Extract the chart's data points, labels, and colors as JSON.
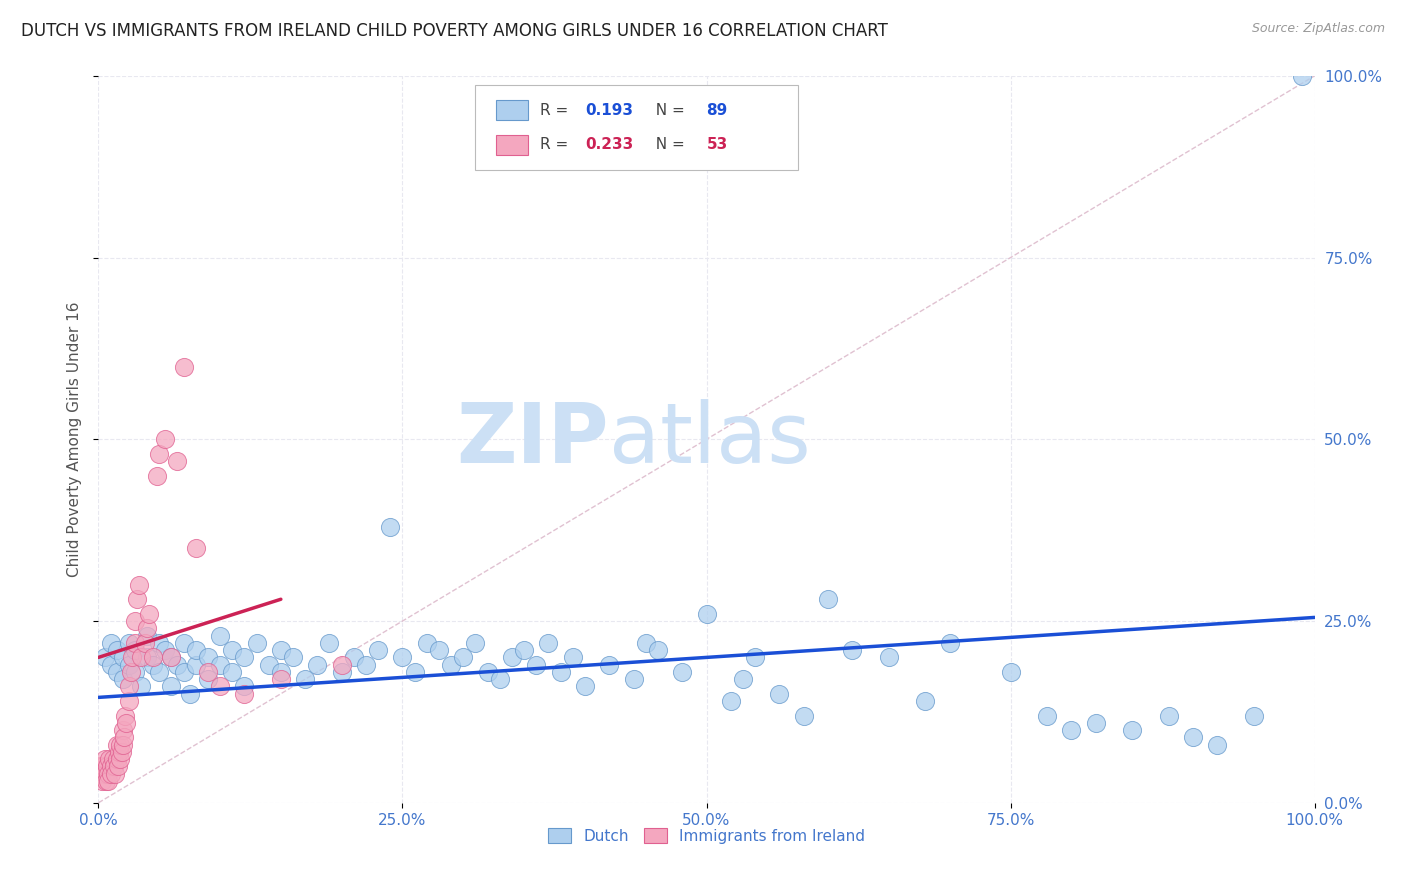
{
  "title": "DUTCH VS IMMIGRANTS FROM IRELAND CHILD POVERTY AMONG GIRLS UNDER 16 CORRELATION CHART",
  "source": "Source: ZipAtlas.com",
  "ylabel": "Child Poverty Among Girls Under 16",
  "xlim": [
    0,
    1
  ],
  "ylim": [
    0,
    1
  ],
  "xticks": [
    0.0,
    0.25,
    0.5,
    0.75,
    1.0
  ],
  "yticks": [
    0.0,
    0.25,
    0.5,
    0.75,
    1.0
  ],
  "xticklabels": [
    "0.0%",
    "25.0%",
    "50.0%",
    "75.0%",
    "100.0%"
  ],
  "yticklabels": [
    "0.0%",
    "25.0%",
    "50.0%",
    "75.0%",
    "100.0%"
  ],
  "dutch_color": "#aecfee",
  "irish_color": "#f4a7bf",
  "dutch_edge_color": "#6699cc",
  "irish_edge_color": "#e06090",
  "blue_line_color": "#1a4fd6",
  "pink_line_color": "#cc2255",
  "diag_line_color": "#ddbbcc",
  "R_dutch": 0.193,
  "N_dutch": 89,
  "R_irish": 0.233,
  "N_irish": 53,
  "watermark_zip": "ZIP",
  "watermark_atlas": "atlas",
  "watermark_color_zip": "#cce0f5",
  "watermark_color_atlas": "#cce0f5",
  "background_color": "#ffffff",
  "grid_color": "#e8e8f0",
  "grid_linestyle": "--",
  "title_fontsize": 12,
  "tick_color": "#4477cc",
  "legend_label_dutch": "Dutch",
  "legend_label_irish": "Immigrants from Ireland",
  "dutch_x": [
    0.005,
    0.01,
    0.01,
    0.015,
    0.015,
    0.02,
    0.02,
    0.025,
    0.025,
    0.03,
    0.03,
    0.035,
    0.04,
    0.04,
    0.045,
    0.05,
    0.05,
    0.055,
    0.06,
    0.06,
    0.065,
    0.07,
    0.07,
    0.075,
    0.08,
    0.08,
    0.09,
    0.09,
    0.1,
    0.1,
    0.11,
    0.11,
    0.12,
    0.12,
    0.13,
    0.14,
    0.15,
    0.15,
    0.16,
    0.17,
    0.18,
    0.19,
    0.2,
    0.21,
    0.22,
    0.23,
    0.24,
    0.25,
    0.26,
    0.27,
    0.28,
    0.29,
    0.3,
    0.31,
    0.32,
    0.33,
    0.34,
    0.35,
    0.36,
    0.37,
    0.38,
    0.39,
    0.4,
    0.42,
    0.44,
    0.45,
    0.46,
    0.48,
    0.5,
    0.52,
    0.53,
    0.54,
    0.56,
    0.58,
    0.6,
    0.62,
    0.65,
    0.68,
    0.7,
    0.75,
    0.78,
    0.8,
    0.82,
    0.85,
    0.88,
    0.9,
    0.92,
    0.95,
    0.99
  ],
  "dutch_y": [
    0.2,
    0.22,
    0.19,
    0.18,
    0.21,
    0.17,
    0.2,
    0.19,
    0.22,
    0.18,
    0.21,
    0.16,
    0.2,
    0.23,
    0.19,
    0.22,
    0.18,
    0.21,
    0.16,
    0.2,
    0.19,
    0.18,
    0.22,
    0.15,
    0.19,
    0.21,
    0.17,
    0.2,
    0.19,
    0.23,
    0.18,
    0.21,
    0.16,
    0.2,
    0.22,
    0.19,
    0.21,
    0.18,
    0.2,
    0.17,
    0.19,
    0.22,
    0.18,
    0.2,
    0.19,
    0.21,
    0.38,
    0.2,
    0.18,
    0.22,
    0.21,
    0.19,
    0.2,
    0.22,
    0.18,
    0.17,
    0.2,
    0.21,
    0.19,
    0.22,
    0.18,
    0.2,
    0.16,
    0.19,
    0.17,
    0.22,
    0.21,
    0.18,
    0.26,
    0.14,
    0.17,
    0.2,
    0.15,
    0.12,
    0.28,
    0.21,
    0.2,
    0.14,
    0.22,
    0.18,
    0.12,
    0.1,
    0.11,
    0.1,
    0.12,
    0.09,
    0.08,
    0.12,
    1.0
  ],
  "irish_x": [
    0.001,
    0.002,
    0.003,
    0.004,
    0.005,
    0.005,
    0.006,
    0.007,
    0.008,
    0.008,
    0.009,
    0.01,
    0.01,
    0.012,
    0.013,
    0.014,
    0.015,
    0.015,
    0.016,
    0.017,
    0.018,
    0.018,
    0.019,
    0.02,
    0.02,
    0.021,
    0.022,
    0.023,
    0.025,
    0.025,
    0.027,
    0.028,
    0.03,
    0.03,
    0.032,
    0.033,
    0.035,
    0.038,
    0.04,
    0.042,
    0.045,
    0.048,
    0.05,
    0.055,
    0.06,
    0.065,
    0.07,
    0.08,
    0.09,
    0.1,
    0.12,
    0.15,
    0.2
  ],
  "irish_y": [
    0.05,
    0.04,
    0.03,
    0.05,
    0.04,
    0.06,
    0.03,
    0.05,
    0.04,
    0.03,
    0.06,
    0.05,
    0.04,
    0.06,
    0.05,
    0.04,
    0.06,
    0.08,
    0.05,
    0.07,
    0.06,
    0.08,
    0.07,
    0.1,
    0.08,
    0.09,
    0.12,
    0.11,
    0.14,
    0.16,
    0.18,
    0.2,
    0.22,
    0.25,
    0.28,
    0.3,
    0.2,
    0.22,
    0.24,
    0.26,
    0.2,
    0.45,
    0.48,
    0.5,
    0.2,
    0.47,
    0.6,
    0.35,
    0.18,
    0.16,
    0.15,
    0.17,
    0.19
  ]
}
